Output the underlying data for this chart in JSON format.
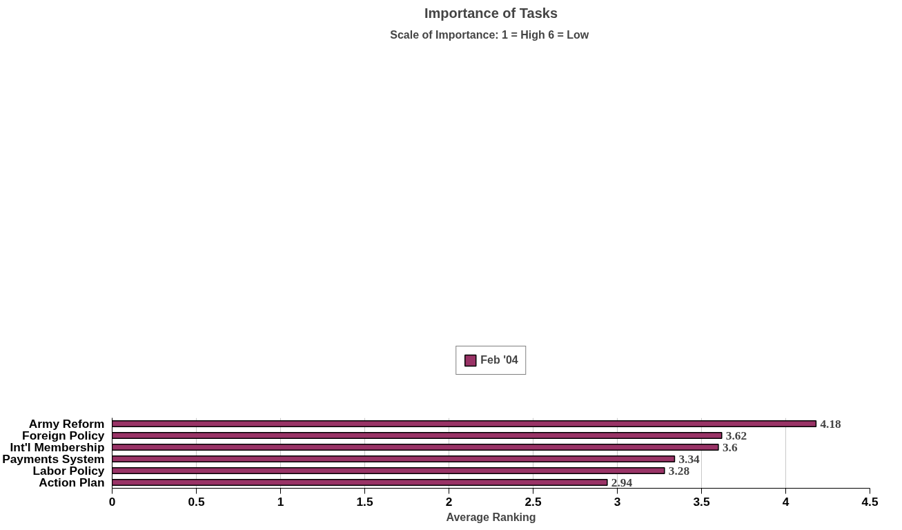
{
  "chart_data": {
    "type": "bar",
    "orientation": "horizontal",
    "title": "Importance of Tasks",
    "subtitle": "Scale of Importance:  1 = High 6 = Low",
    "xlabel": "Average Ranking",
    "categories": [
      "Army Reform",
      "Foreign Policy",
      "Int'l Membership",
      "Payments System",
      "Labor Policy",
      "Action Plan"
    ],
    "series": [
      {
        "name": "Feb '04",
        "color": "#993366",
        "values": [
          4.18,
          3.62,
          3.6,
          3.34,
          3.28,
          2.94
        ]
      }
    ],
    "xlim": [
      0,
      4.5
    ],
    "xticks": [
      0,
      0.5,
      1,
      1.5,
      2,
      2.5,
      3,
      3.5,
      4,
      4.5
    ],
    "grid": "x",
    "legend": "top",
    "data_labels": true
  }
}
